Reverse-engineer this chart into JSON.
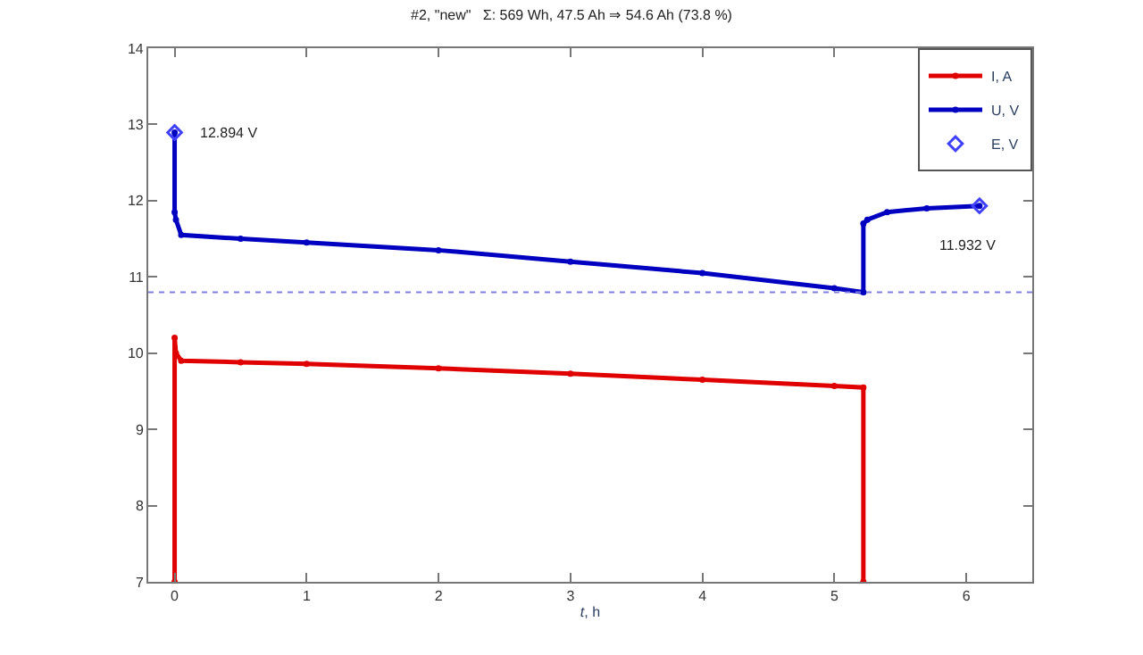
{
  "chart_data": {
    "type": "line",
    "title": "#2, \"new\"   Σ: 569 Wh, 47.5 Ah ⇒ 54.6 Ah (73.8 %)",
    "xlabel": "t, h",
    "x": [
      0,
      0,
      0.01,
      0.05,
      0.5,
      1,
      2,
      3,
      4,
      5,
      5.22,
      5.22
    ],
    "series": [
      {
        "name": "I, A",
        "color": "#e00000",
        "marker": "circle",
        "values": [
          7,
          10.2,
          10.0,
          9.9,
          9.88,
          9.86,
          9.8,
          9.73,
          9.65,
          9.57,
          9.55,
          7
        ]
      },
      {
        "name": "U, V",
        "color": "#0000c0",
        "marker": "circle",
        "x": [
          0,
          0,
          0.01,
          0.05,
          0.5,
          1,
          2,
          3,
          4,
          5,
          5.22,
          5.22,
          5.25,
          5.4,
          5.7,
          6.1
        ],
        "values": [
          12.894,
          11.85,
          11.75,
          11.55,
          11.5,
          11.45,
          11.35,
          11.2,
          11.05,
          10.85,
          10.8,
          11.7,
          11.75,
          11.85,
          11.9,
          11.93
        ]
      },
      {
        "name": "E, V",
        "color": "#4040ff",
        "type": "scatter",
        "marker": "diamond",
        "x": [
          0,
          6.1
        ],
        "values": [
          12.894,
          11.932
        ]
      }
    ],
    "annotations": [
      {
        "text": "12.894 V",
        "x": 0,
        "y": 12.894
      },
      {
        "text": "11.932 V",
        "x": 6.1,
        "y": 11.932
      }
    ],
    "ref_lines": [
      {
        "axis": "y",
        "value": 10.8,
        "color": "#8080e0",
        "line_style": "dotted"
      }
    ],
    "xlim": [
      -0.2,
      6.5
    ],
    "xticks": [
      0,
      1,
      2,
      3,
      4,
      5,
      6
    ],
    "ylim": [
      7,
      14
    ],
    "yticks": [
      7,
      8,
      9,
      10,
      11,
      12,
      13,
      14
    ],
    "legend": "top right"
  }
}
